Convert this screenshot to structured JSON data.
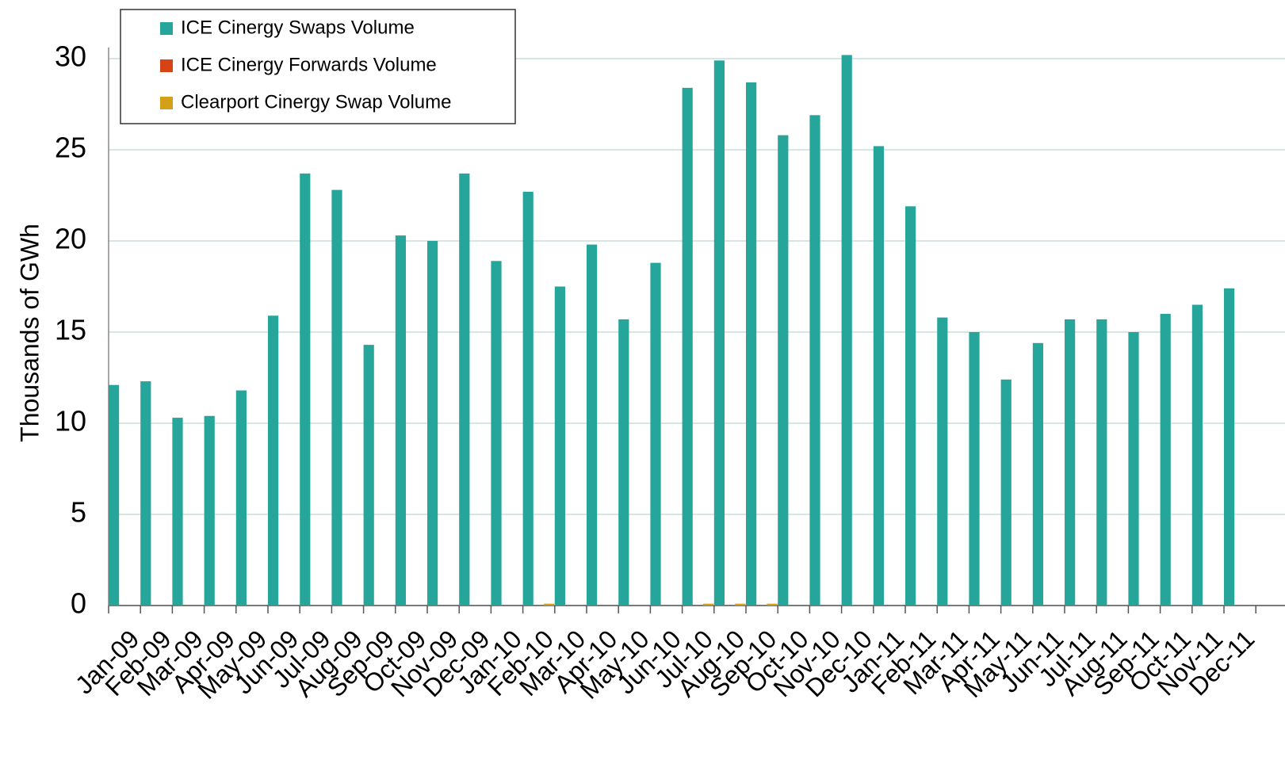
{
  "chart_data": {
    "type": "bar",
    "y_label": "Thousands of GWh",
    "categories": [
      "Jan-09",
      "Feb-09",
      "Mar-09",
      "Apr-09",
      "May-09",
      "Jun-09",
      "Jul-09",
      "Aug-09",
      "Sep-09",
      "Oct-09",
      "Nov-09",
      "Dec-09",
      "Jan-10",
      "Feb-10",
      "Mar-10",
      "Apr-10",
      "May-10",
      "Jun-10",
      "Jul-10",
      "Aug-10",
      "Sep-10",
      "Oct-10",
      "Nov-10",
      "Dec-10",
      "Jan-11",
      "Feb-11",
      "Mar-11",
      "Apr-11",
      "May-11",
      "Jun-11",
      "Jul-11",
      "Aug-11",
      "Sep-11",
      "Oct-11",
      "Nov-11",
      "Dec-11"
    ],
    "series": [
      {
        "name": "ICE Cinergy Swaps Volume",
        "color": "#26a69a",
        "values": [
          12.1,
          12.3,
          10.3,
          10.4,
          11.8,
          15.9,
          23.7,
          22.8,
          14.3,
          20.3,
          20.0,
          23.7,
          18.9,
          22.7,
          17.5,
          19.8,
          15.7,
          18.8,
          28.4,
          29.9,
          28.7,
          25.8,
          26.9,
          30.2,
          25.2,
          21.9,
          15.8,
          15.0,
          12.4,
          14.4,
          15.7,
          15.7,
          15.0,
          16.0,
          16.5,
          17.4
        ]
      },
      {
        "name": "ICE Cinergy Forwards Volume",
        "color": "#d84315",
        "values": [
          0,
          0,
          0,
          0,
          0,
          0,
          0,
          0,
          0,
          0,
          0,
          0,
          0,
          0,
          0,
          0,
          0,
          0,
          0,
          0,
          0,
          0,
          0,
          0,
          0,
          0,
          0,
          0,
          0,
          0,
          0,
          0,
          0,
          0,
          0,
          0
        ]
      },
      {
        "name": "Clearport Cinergy Swap Volume",
        "color": "#d4a017",
        "values": [
          0,
          0,
          0,
          0,
          0,
          0,
          0,
          0,
          0,
          0,
          0,
          0,
          0,
          0.1,
          0,
          0,
          0,
          0,
          0.1,
          0.1,
          0.1,
          0,
          0,
          0,
          0,
          0,
          0,
          0,
          0,
          0,
          0,
          0,
          0,
          0,
          0,
          0
        ]
      }
    ],
    "ylim": [
      0,
      30
    ],
    "yticks": [
      0,
      5,
      10,
      15,
      20,
      25,
      30
    ],
    "grid": true,
    "legend": "top-left"
  }
}
